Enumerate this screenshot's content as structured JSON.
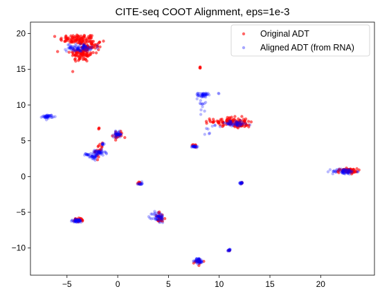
{
  "chart_data": {
    "type": "scatter",
    "title": "CITE-seq COOT Alignment, eps=1e-3",
    "xlabel": "",
    "ylabel": "",
    "xlim": [
      -8.6,
      25.3
    ],
    "ylim": [
      -13.8,
      21.6
    ],
    "xticks": [
      -5,
      0,
      5,
      10,
      15,
      20
    ],
    "yticks": [
      -10,
      -5,
      0,
      5,
      10,
      15,
      20
    ],
    "xtick_labels": [
      "−5",
      "0",
      "5",
      "10",
      "15",
      "20"
    ],
    "ytick_labels": [
      "−10",
      "−5",
      "0",
      "5",
      "10",
      "15",
      "20"
    ],
    "grid": false,
    "legend_position": "top-right",
    "series": [
      {
        "name": "Original ADT",
        "color": "#ff0000",
        "alpha": 0.6,
        "clusters": [
          {
            "cx": -3.9,
            "cy": 19.2,
            "sx": 0.9,
            "sy": 0.35,
            "n": 90
          },
          {
            "cx": -3.5,
            "cy": 17.2,
            "sx": 0.6,
            "sy": 0.6,
            "n": 90
          },
          {
            "cx": -2.6,
            "cy": 18.3,
            "sx": 0.5,
            "sy": 0.4,
            "n": 40
          },
          {
            "cx": 8.1,
            "cy": 15.2,
            "sx": 0.03,
            "sy": 0.05,
            "n": 4
          },
          {
            "cx": 11.0,
            "cy": 7.7,
            "sx": 0.9,
            "sy": 0.3,
            "n": 90
          },
          {
            "cx": 12.3,
            "cy": 7.2,
            "sx": 0.4,
            "sy": 0.2,
            "n": 30
          },
          {
            "cx": 22.6,
            "cy": 0.8,
            "sx": 0.5,
            "sy": 0.15,
            "n": 60
          },
          {
            "cx": 0.0,
            "cy": 5.8,
            "sx": 0.25,
            "sy": 0.3,
            "n": 18
          },
          {
            "cx": -1.8,
            "cy": 3.6,
            "sx": 0.2,
            "sy": 0.5,
            "n": 18
          },
          {
            "cx": -1.9,
            "cy": 6.7,
            "sx": 0.03,
            "sy": 0.04,
            "n": 3
          },
          {
            "cx": 7.5,
            "cy": 4.3,
            "sx": 0.1,
            "sy": 0.1,
            "n": 6
          },
          {
            "cx": 2.2,
            "cy": -0.9,
            "sx": 0.1,
            "sy": 0.08,
            "n": 6
          },
          {
            "cx": 12.2,
            "cy": -0.9,
            "sx": 0.05,
            "sy": 0.05,
            "n": 5
          },
          {
            "cx": 4.2,
            "cy": -5.8,
            "sx": 0.25,
            "sy": 0.4,
            "n": 25
          },
          {
            "cx": -3.8,
            "cy": -6.1,
            "sx": 0.35,
            "sy": 0.15,
            "n": 20
          },
          {
            "cx": 8.0,
            "cy": -11.9,
            "sx": 0.25,
            "sy": 0.2,
            "n": 15
          },
          {
            "cx": 11.0,
            "cy": -10.3,
            "sx": 0.05,
            "sy": 0.05,
            "n": 3
          }
        ]
      },
      {
        "name": "Aligned ADT (from RNA)",
        "color": "#0000ff",
        "alpha": 0.28,
        "clusters": [
          {
            "cx": -3.8,
            "cy": 18.0,
            "sx": 0.6,
            "sy": 0.25,
            "n": 80
          },
          {
            "cx": -6.9,
            "cy": 8.4,
            "sx": 0.25,
            "sy": 0.12,
            "n": 40
          },
          {
            "cx": 8.4,
            "cy": 11.4,
            "sx": 0.25,
            "sy": 0.15,
            "n": 40
          },
          {
            "cx": 8.3,
            "cy": 9.5,
            "sx": 0.2,
            "sy": 1.2,
            "n": 14
          },
          {
            "cx": 11.5,
            "cy": 7.4,
            "sx": 0.8,
            "sy": 0.2,
            "n": 50
          },
          {
            "cx": 0.0,
            "cy": 5.9,
            "sx": 0.2,
            "sy": 0.2,
            "n": 35
          },
          {
            "cx": -1.9,
            "cy": 3.3,
            "sx": 0.35,
            "sy": 0.2,
            "n": 45
          },
          {
            "cx": -2.5,
            "cy": 2.8,
            "sx": 0.3,
            "sy": 0.2,
            "n": 25
          },
          {
            "cx": -3.0,
            "cy": 3.1,
            "sx": 0.1,
            "sy": 0.08,
            "n": 10
          },
          {
            "cx": -1.5,
            "cy": 4.5,
            "sx": 0.08,
            "sy": 0.08,
            "n": 8
          },
          {
            "cx": 7.6,
            "cy": 4.2,
            "sx": 0.15,
            "sy": 0.08,
            "n": 20
          },
          {
            "cx": 2.2,
            "cy": -1.0,
            "sx": 0.1,
            "sy": 0.08,
            "n": 12
          },
          {
            "cx": 12.2,
            "cy": -0.9,
            "sx": 0.1,
            "sy": 0.08,
            "n": 15
          },
          {
            "cx": 22.3,
            "cy": 0.7,
            "sx": 0.6,
            "sy": 0.2,
            "n": 60
          },
          {
            "cx": 4.0,
            "cy": -5.7,
            "sx": 0.3,
            "sy": 0.4,
            "n": 50
          },
          {
            "cx": -4.0,
            "cy": -6.2,
            "sx": 0.35,
            "sy": 0.12,
            "n": 40
          },
          {
            "cx": 8.0,
            "cy": -11.8,
            "sx": 0.2,
            "sy": 0.2,
            "n": 40
          },
          {
            "cx": 11.0,
            "cy": -10.3,
            "sx": 0.1,
            "sy": 0.08,
            "n": 12
          },
          {
            "cx": 9.5,
            "cy": 7.1,
            "sx": 0.1,
            "sy": 0.05,
            "n": 3
          },
          {
            "cx": 10.0,
            "cy": 11.6,
            "sx": 0.05,
            "sy": 0.05,
            "n": 2
          },
          {
            "cx": 8.8,
            "cy": 6.7,
            "sx": 0.08,
            "sy": 0.05,
            "n": 2
          },
          {
            "cx": 9.0,
            "cy": 6.0,
            "sx": 0.05,
            "sy": 0.05,
            "n": 2
          }
        ]
      }
    ]
  }
}
